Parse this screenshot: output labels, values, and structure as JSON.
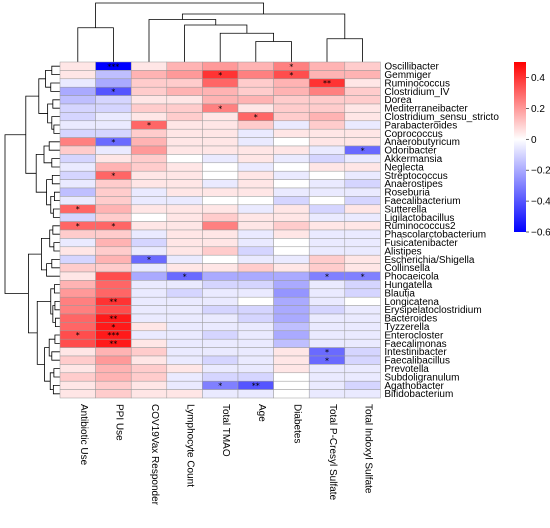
{
  "chart_data": {
    "type": "heatmap",
    "columns": [
      "Antibiotic Use",
      "PPI Use",
      "COV19Vax Responder",
      "Lymphocyte Count",
      "Total TMAO",
      "Age",
      "Diabetes",
      "Total P-Cresyl Sulfate",
      "Total Indoxyl Sulfate"
    ],
    "rows": [
      "Oscillibacter",
      "Gemmiger",
      "Ruminococcus",
      "Clostridium_IV",
      "Dorea",
      "Mediterraneibacter",
      "Clostridium_sensu_stricto",
      "Parabacteroides",
      "Coprococcus",
      "Anaerobutyricum",
      "Odoribacter",
      "Akkermansia",
      "Neglecta",
      "Streptococcus",
      "Anaerostipes",
      "Roseburia",
      "Faecalibacterium",
      "Sutterella",
      "Ligilactobacillus",
      "Ruminococcus2",
      "Phascolarctobacterium",
      "Fusicatenibacter",
      "Alistipes",
      "Escherichia/Shigella",
      "Collinsella",
      "Phocaeicola",
      "Hungatella",
      "Blautia",
      "Longicatena",
      "Erysipelatoclostridium",
      "Bacteroides",
      "Tyzzerella",
      "Enterocloster",
      "Faecalimonas",
      "Intestinibacter",
      "Faecalibacillus",
      "Prevotella",
      "Subdoligranulum",
      "Agathobacter",
      "Bifidobacterium"
    ],
    "values": [
      [
        0.05,
        -0.6,
        0.05,
        0.15,
        0.2,
        0.15,
        0.25,
        0.15,
        0.1
      ],
      [
        0.05,
        -0.15,
        0.15,
        0.2,
        0.4,
        0.25,
        0.35,
        0.15,
        0.15
      ],
      [
        -0.05,
        -0.2,
        0.1,
        0.1,
        0.3,
        0.1,
        0.15,
        0.4,
        0.05
      ],
      [
        -0.2,
        -0.4,
        0.1,
        0.15,
        0.15,
        0.1,
        0.15,
        0.25,
        0.1
      ],
      [
        -0.15,
        -0.1,
        0.05,
        0.05,
        0.15,
        0.15,
        0.1,
        0.1,
        0.1
      ],
      [
        -0.1,
        -0.1,
        0.1,
        0.1,
        0.25,
        0.05,
        0.1,
        0.1,
        0.05
      ],
      [
        -0.1,
        -0.05,
        0.05,
        0.1,
        0.05,
        0.3,
        0.1,
        0.15,
        0.05
      ],
      [
        -0.05,
        -0.05,
        0.3,
        0.05,
        0.05,
        0.1,
        -0.05,
        0.1,
        -0.05
      ],
      [
        -0.1,
        -0.1,
        0.1,
        0.05,
        0.05,
        -0.05,
        0.05,
        0.05,
        0.05
      ],
      [
        0.25,
        -0.35,
        0.15,
        0.05,
        0.05,
        -0.05,
        0.0,
        0.05,
        0.05
      ],
      [
        0.1,
        -0.05,
        0.2,
        0.05,
        0.05,
        0.05,
        0.05,
        -0.05,
        -0.35
      ],
      [
        -0.1,
        0.05,
        0.1,
        0.0,
        -0.05,
        0.05,
        -0.05,
        -0.1,
        -0.05
      ],
      [
        -0.05,
        0.15,
        0.1,
        0.05,
        0.0,
        -0.05,
        0.0,
        0.05,
        0.05
      ],
      [
        -0.1,
        0.3,
        0.05,
        0.05,
        0.0,
        0.05,
        -0.05,
        0.0,
        -0.05
      ],
      [
        -0.05,
        0.1,
        0.05,
        0.05,
        -0.05,
        0.05,
        0.0,
        -0.05,
        -0.1
      ],
      [
        -0.15,
        0.1,
        -0.05,
        0.05,
        0.05,
        0.05,
        -0.05,
        -0.05,
        -0.05
      ],
      [
        -0.05,
        0.1,
        -0.05,
        -0.05,
        0.0,
        0.0,
        -0.1,
        0.0,
        -0.1
      ],
      [
        0.3,
        0.15,
        0.05,
        0.05,
        0.05,
        -0.05,
        0.05,
        -0.1,
        0.05
      ],
      [
        -0.1,
        0.1,
        0.0,
        0.05,
        0.1,
        0.05,
        0.05,
        -0.05,
        -0.05
      ],
      [
        0.3,
        0.3,
        0.05,
        0.05,
        0.25,
        0.05,
        0.1,
        0.05,
        0.05
      ],
      [
        0.1,
        0.1,
        -0.05,
        0.05,
        0.05,
        -0.05,
        0.05,
        -0.05,
        -0.05
      ],
      [
        -0.05,
        0.15,
        -0.1,
        0.05,
        0.05,
        -0.05,
        0.0,
        -0.05,
        -0.05
      ],
      [
        0.05,
        0.1,
        -0.05,
        0.05,
        0.1,
        -0.1,
        0.0,
        -0.05,
        -0.05
      ],
      [
        -0.1,
        0.15,
        -0.35,
        -0.05,
        0.0,
        -0.05,
        -0.05,
        0.1,
        0.05
      ],
      [
        0.1,
        0.1,
        -0.05,
        0.05,
        0.05,
        0.1,
        0.05,
        0.1,
        0.05
      ],
      [
        0.05,
        0.35,
        -0.2,
        -0.35,
        -0.2,
        -0.2,
        -0.2,
        -0.3,
        -0.3
      ],
      [
        0.15,
        0.3,
        -0.05,
        -0.05,
        -0.1,
        -0.1,
        -0.2,
        -0.05,
        -0.1
      ],
      [
        0.2,
        0.3,
        -0.05,
        -0.1,
        -0.05,
        -0.05,
        -0.25,
        -0.05,
        -0.1
      ],
      [
        0.25,
        0.4,
        -0.05,
        -0.05,
        -0.05,
        0.0,
        -0.2,
        -0.05,
        0.0
      ],
      [
        0.25,
        0.35,
        -0.05,
        -0.05,
        -0.1,
        -0.1,
        -0.2,
        -0.1,
        -0.05
      ],
      [
        0.3,
        0.45,
        -0.05,
        -0.05,
        -0.05,
        -0.1,
        -0.2,
        -0.05,
        -0.05
      ],
      [
        0.3,
        0.45,
        0.05,
        -0.05,
        -0.05,
        -0.05,
        -0.15,
        -0.05,
        -0.05
      ],
      [
        0.35,
        0.45,
        -0.05,
        -0.05,
        -0.1,
        -0.05,
        -0.2,
        -0.05,
        -0.05
      ],
      [
        0.35,
        0.45,
        0.05,
        -0.05,
        -0.05,
        -0.05,
        -0.15,
        -0.05,
        -0.05
      ],
      [
        0.05,
        0.15,
        0.1,
        -0.05,
        -0.05,
        -0.05,
        0.05,
        -0.35,
        -0.1
      ],
      [
        0.1,
        0.2,
        0.05,
        -0.05,
        -0.1,
        -0.05,
        0.05,
        -0.35,
        -0.1
      ],
      [
        0.05,
        0.15,
        0.1,
        0.05,
        -0.05,
        -0.05,
        0.05,
        -0.05,
        -0.05
      ],
      [
        0.1,
        0.15,
        0.1,
        -0.05,
        -0.1,
        -0.1,
        0.0,
        -0.05,
        -0.05
      ],
      [
        0.05,
        0.1,
        0.05,
        -0.05,
        -0.3,
        -0.4,
        0.0,
        -0.05,
        -0.1
      ],
      [
        0.05,
        0.1,
        0.05,
        0.05,
        -0.05,
        -0.05,
        0.0,
        -0.05,
        -0.05
      ]
    ],
    "annotations": [
      {
        "row": 0,
        "col": 1,
        "text": "***"
      },
      {
        "row": 0,
        "col": 6,
        "text": "*"
      },
      {
        "row": 1,
        "col": 4,
        "text": "*"
      },
      {
        "row": 1,
        "col": 6,
        "text": "*"
      },
      {
        "row": 2,
        "col": 7,
        "text": "**"
      },
      {
        "row": 3,
        "col": 1,
        "text": "*"
      },
      {
        "row": 5,
        "col": 4,
        "text": "*"
      },
      {
        "row": 6,
        "col": 5,
        "text": "*"
      },
      {
        "row": 7,
        "col": 2,
        "text": "*"
      },
      {
        "row": 9,
        "col": 1,
        "text": "*"
      },
      {
        "row": 10,
        "col": 8,
        "text": "*"
      },
      {
        "row": 13,
        "col": 1,
        "text": "*"
      },
      {
        "row": 17,
        "col": 0,
        "text": "*"
      },
      {
        "row": 19,
        "col": 0,
        "text": "*"
      },
      {
        "row": 19,
        "col": 1,
        "text": "*"
      },
      {
        "row": 23,
        "col": 2,
        "text": "*"
      },
      {
        "row": 25,
        "col": 3,
        "text": "*"
      },
      {
        "row": 25,
        "col": 7,
        "text": "*"
      },
      {
        "row": 25,
        "col": 8,
        "text": "*"
      },
      {
        "row": 28,
        "col": 1,
        "text": "**"
      },
      {
        "row": 30,
        "col": 1,
        "text": "**"
      },
      {
        "row": 31,
        "col": 1,
        "text": "*"
      },
      {
        "row": 32,
        "col": 0,
        "text": "*"
      },
      {
        "row": 32,
        "col": 1,
        "text": "***"
      },
      {
        "row": 33,
        "col": 1,
        "text": "**"
      },
      {
        "row": 34,
        "col": 7,
        "text": "*"
      },
      {
        "row": 35,
        "col": 7,
        "text": "*"
      },
      {
        "row": 38,
        "col": 4,
        "text": "*"
      },
      {
        "row": 38,
        "col": 5,
        "text": "**"
      }
    ],
    "color_scale": {
      "min": -0.6,
      "max": 0.5,
      "low_color": "#0000ff",
      "mid_color": "#ffffff",
      "high_color": "#ff0000",
      "ticks": [
        0.4,
        0.2,
        0,
        -0.2,
        -0.4,
        -0.6
      ],
      "tick_labels": [
        "0.4",
        "0.2",
        "0",
        "−0.2",
        "−0.4",
        "−0.6"
      ]
    },
    "dendrograms": {
      "rows": "left",
      "columns": "top"
    }
  }
}
